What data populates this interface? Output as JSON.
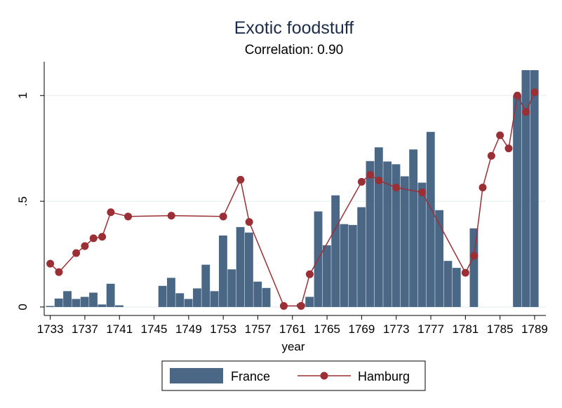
{
  "chart_data": {
    "type": "bar",
    "title": "Exotic foodstuff",
    "subtitle": "Correlation: 0.90",
    "xlabel": "year",
    "ylabel": "",
    "xlim": [
      1732.3,
      1790.3
    ],
    "ylim": [
      -0.04,
      1.16
    ],
    "x_ticks": [
      1733,
      1737,
      1741,
      1745,
      1749,
      1753,
      1757,
      1761,
      1765,
      1769,
      1773,
      1777,
      1781,
      1785,
      1789
    ],
    "y_ticks": [
      0,
      0.5,
      1
    ],
    "y_tick_labels": [
      "0",
      ".5",
      "1"
    ],
    "grid": true,
    "legend_position": "bottom",
    "colors": {
      "France": "#4a6786",
      "Hamburg": "#9b2f36",
      "grid": "#eaf2f3",
      "title": "#1e2d4a"
    },
    "series": [
      {
        "name": "France",
        "type": "bar",
        "x": [
          1733,
          1734,
          1735,
          1736,
          1737,
          1738,
          1739,
          1740,
          1741,
          1746,
          1747,
          1748,
          1749,
          1750,
          1751,
          1752,
          1753,
          1754,
          1755,
          1756,
          1757,
          1758,
          1762,
          1763,
          1764,
          1765,
          1766,
          1767,
          1768,
          1769,
          1770,
          1771,
          1772,
          1773,
          1774,
          1775,
          1776,
          1777,
          1778,
          1779,
          1780,
          1782,
          1787,
          1788,
          1789
        ],
        "values": [
          0.005,
          0.04,
          0.075,
          0.038,
          0.048,
          0.068,
          0.012,
          0.11,
          0.008,
          0.1,
          0.138,
          0.065,
          0.038,
          0.088,
          0.2,
          0.075,
          0.338,
          0.178,
          0.378,
          0.352,
          0.12,
          0.09,
          0.015,
          0.048,
          0.452,
          0.292,
          0.528,
          0.392,
          0.388,
          0.472,
          0.69,
          0.755,
          0.688,
          0.675,
          0.618,
          0.745,
          0.588,
          0.828,
          0.458,
          0.218,
          0.185,
          0.372,
          1.0,
          1.12,
          1.12
        ]
      },
      {
        "name": "Hamburg",
        "type": "line",
        "x": [
          1733,
          1734,
          1736,
          1737,
          1738,
          1739,
          1740,
          1742,
          1747,
          1753,
          1755,
          1756,
          1760,
          1762,
          1763,
          1769,
          1770,
          1771,
          1773,
          1776,
          1781,
          1782,
          1783,
          1784,
          1785,
          1786,
          1787,
          1788,
          1789
        ],
        "values": [
          0.205,
          0.165,
          0.255,
          0.288,
          0.325,
          0.332,
          0.448,
          0.428,
          0.432,
          0.428,
          0.602,
          0.402,
          0.005,
          0.005,
          0.155,
          0.592,
          0.625,
          0.598,
          0.565,
          0.542,
          0.162,
          0.242,
          0.565,
          0.715,
          0.812,
          0.75,
          1.0,
          0.922,
          1.015
        ]
      }
    ]
  }
}
